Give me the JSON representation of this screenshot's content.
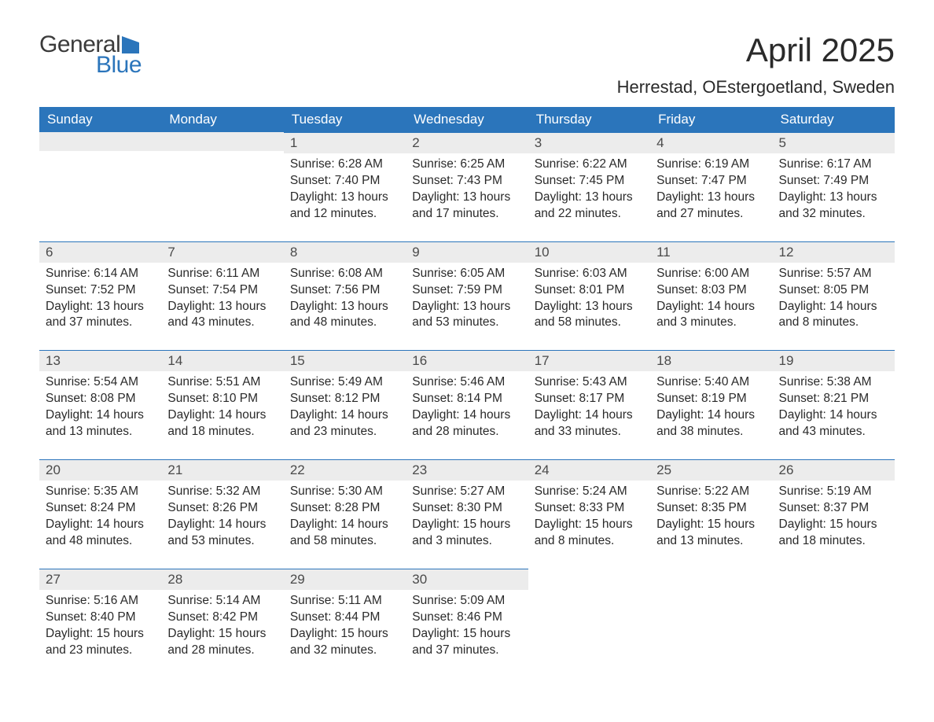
{
  "logo": {
    "general": "General",
    "blue": "Blue"
  },
  "title": "April 2025",
  "location": "Herrestad, OEstergoetland, Sweden",
  "colors": {
    "accent": "#2b75bb",
    "header_bg": "#2b75bb",
    "header_text": "#ffffff",
    "daynum_bg": "#ececec",
    "text": "#2a2a2a"
  },
  "weekdays": [
    "Sunday",
    "Monday",
    "Tuesday",
    "Wednesday",
    "Thursday",
    "Friday",
    "Saturday"
  ],
  "weeks": [
    [
      {
        "day": "",
        "sunrise": "",
        "sunset": "",
        "daylight1": "",
        "daylight2": ""
      },
      {
        "day": "",
        "sunrise": "",
        "sunset": "",
        "daylight1": "",
        "daylight2": ""
      },
      {
        "day": "1",
        "sunrise": "Sunrise: 6:28 AM",
        "sunset": "Sunset: 7:40 PM",
        "daylight1": "Daylight: 13 hours",
        "daylight2": "and 12 minutes."
      },
      {
        "day": "2",
        "sunrise": "Sunrise: 6:25 AM",
        "sunset": "Sunset: 7:43 PM",
        "daylight1": "Daylight: 13 hours",
        "daylight2": "and 17 minutes."
      },
      {
        "day": "3",
        "sunrise": "Sunrise: 6:22 AM",
        "sunset": "Sunset: 7:45 PM",
        "daylight1": "Daylight: 13 hours",
        "daylight2": "and 22 minutes."
      },
      {
        "day": "4",
        "sunrise": "Sunrise: 6:19 AM",
        "sunset": "Sunset: 7:47 PM",
        "daylight1": "Daylight: 13 hours",
        "daylight2": "and 27 minutes."
      },
      {
        "day": "5",
        "sunrise": "Sunrise: 6:17 AM",
        "sunset": "Sunset: 7:49 PM",
        "daylight1": "Daylight: 13 hours",
        "daylight2": "and 32 minutes."
      }
    ],
    [
      {
        "day": "6",
        "sunrise": "Sunrise: 6:14 AM",
        "sunset": "Sunset: 7:52 PM",
        "daylight1": "Daylight: 13 hours",
        "daylight2": "and 37 minutes."
      },
      {
        "day": "7",
        "sunrise": "Sunrise: 6:11 AM",
        "sunset": "Sunset: 7:54 PM",
        "daylight1": "Daylight: 13 hours",
        "daylight2": "and 43 minutes."
      },
      {
        "day": "8",
        "sunrise": "Sunrise: 6:08 AM",
        "sunset": "Sunset: 7:56 PM",
        "daylight1": "Daylight: 13 hours",
        "daylight2": "and 48 minutes."
      },
      {
        "day": "9",
        "sunrise": "Sunrise: 6:05 AM",
        "sunset": "Sunset: 7:59 PM",
        "daylight1": "Daylight: 13 hours",
        "daylight2": "and 53 minutes."
      },
      {
        "day": "10",
        "sunrise": "Sunrise: 6:03 AM",
        "sunset": "Sunset: 8:01 PM",
        "daylight1": "Daylight: 13 hours",
        "daylight2": "and 58 minutes."
      },
      {
        "day": "11",
        "sunrise": "Sunrise: 6:00 AM",
        "sunset": "Sunset: 8:03 PM",
        "daylight1": "Daylight: 14 hours",
        "daylight2": "and 3 minutes."
      },
      {
        "day": "12",
        "sunrise": "Sunrise: 5:57 AM",
        "sunset": "Sunset: 8:05 PM",
        "daylight1": "Daylight: 14 hours",
        "daylight2": "and 8 minutes."
      }
    ],
    [
      {
        "day": "13",
        "sunrise": "Sunrise: 5:54 AM",
        "sunset": "Sunset: 8:08 PM",
        "daylight1": "Daylight: 14 hours",
        "daylight2": "and 13 minutes."
      },
      {
        "day": "14",
        "sunrise": "Sunrise: 5:51 AM",
        "sunset": "Sunset: 8:10 PM",
        "daylight1": "Daylight: 14 hours",
        "daylight2": "and 18 minutes."
      },
      {
        "day": "15",
        "sunrise": "Sunrise: 5:49 AM",
        "sunset": "Sunset: 8:12 PM",
        "daylight1": "Daylight: 14 hours",
        "daylight2": "and 23 minutes."
      },
      {
        "day": "16",
        "sunrise": "Sunrise: 5:46 AM",
        "sunset": "Sunset: 8:14 PM",
        "daylight1": "Daylight: 14 hours",
        "daylight2": "and 28 minutes."
      },
      {
        "day": "17",
        "sunrise": "Sunrise: 5:43 AM",
        "sunset": "Sunset: 8:17 PM",
        "daylight1": "Daylight: 14 hours",
        "daylight2": "and 33 minutes."
      },
      {
        "day": "18",
        "sunrise": "Sunrise: 5:40 AM",
        "sunset": "Sunset: 8:19 PM",
        "daylight1": "Daylight: 14 hours",
        "daylight2": "and 38 minutes."
      },
      {
        "day": "19",
        "sunrise": "Sunrise: 5:38 AM",
        "sunset": "Sunset: 8:21 PM",
        "daylight1": "Daylight: 14 hours",
        "daylight2": "and 43 minutes."
      }
    ],
    [
      {
        "day": "20",
        "sunrise": "Sunrise: 5:35 AM",
        "sunset": "Sunset: 8:24 PM",
        "daylight1": "Daylight: 14 hours",
        "daylight2": "and 48 minutes."
      },
      {
        "day": "21",
        "sunrise": "Sunrise: 5:32 AM",
        "sunset": "Sunset: 8:26 PM",
        "daylight1": "Daylight: 14 hours",
        "daylight2": "and 53 minutes."
      },
      {
        "day": "22",
        "sunrise": "Sunrise: 5:30 AM",
        "sunset": "Sunset: 8:28 PM",
        "daylight1": "Daylight: 14 hours",
        "daylight2": "and 58 minutes."
      },
      {
        "day": "23",
        "sunrise": "Sunrise: 5:27 AM",
        "sunset": "Sunset: 8:30 PM",
        "daylight1": "Daylight: 15 hours",
        "daylight2": "and 3 minutes."
      },
      {
        "day": "24",
        "sunrise": "Sunrise: 5:24 AM",
        "sunset": "Sunset: 8:33 PM",
        "daylight1": "Daylight: 15 hours",
        "daylight2": "and 8 minutes."
      },
      {
        "day": "25",
        "sunrise": "Sunrise: 5:22 AM",
        "sunset": "Sunset: 8:35 PM",
        "daylight1": "Daylight: 15 hours",
        "daylight2": "and 13 minutes."
      },
      {
        "day": "26",
        "sunrise": "Sunrise: 5:19 AM",
        "sunset": "Sunset: 8:37 PM",
        "daylight1": "Daylight: 15 hours",
        "daylight2": "and 18 minutes."
      }
    ],
    [
      {
        "day": "27",
        "sunrise": "Sunrise: 5:16 AM",
        "sunset": "Sunset: 8:40 PM",
        "daylight1": "Daylight: 15 hours",
        "daylight2": "and 23 minutes."
      },
      {
        "day": "28",
        "sunrise": "Sunrise: 5:14 AM",
        "sunset": "Sunset: 8:42 PM",
        "daylight1": "Daylight: 15 hours",
        "daylight2": "and 28 minutes."
      },
      {
        "day": "29",
        "sunrise": "Sunrise: 5:11 AM",
        "sunset": "Sunset: 8:44 PM",
        "daylight1": "Daylight: 15 hours",
        "daylight2": "and 32 minutes."
      },
      {
        "day": "30",
        "sunrise": "Sunrise: 5:09 AM",
        "sunset": "Sunset: 8:46 PM",
        "daylight1": "Daylight: 15 hours",
        "daylight2": "and 37 minutes."
      },
      {
        "day": "",
        "sunrise": "",
        "sunset": "",
        "daylight1": "",
        "daylight2": ""
      },
      {
        "day": "",
        "sunrise": "",
        "sunset": "",
        "daylight1": "",
        "daylight2": ""
      },
      {
        "day": "",
        "sunrise": "",
        "sunset": "",
        "daylight1": "",
        "daylight2": ""
      }
    ]
  ]
}
